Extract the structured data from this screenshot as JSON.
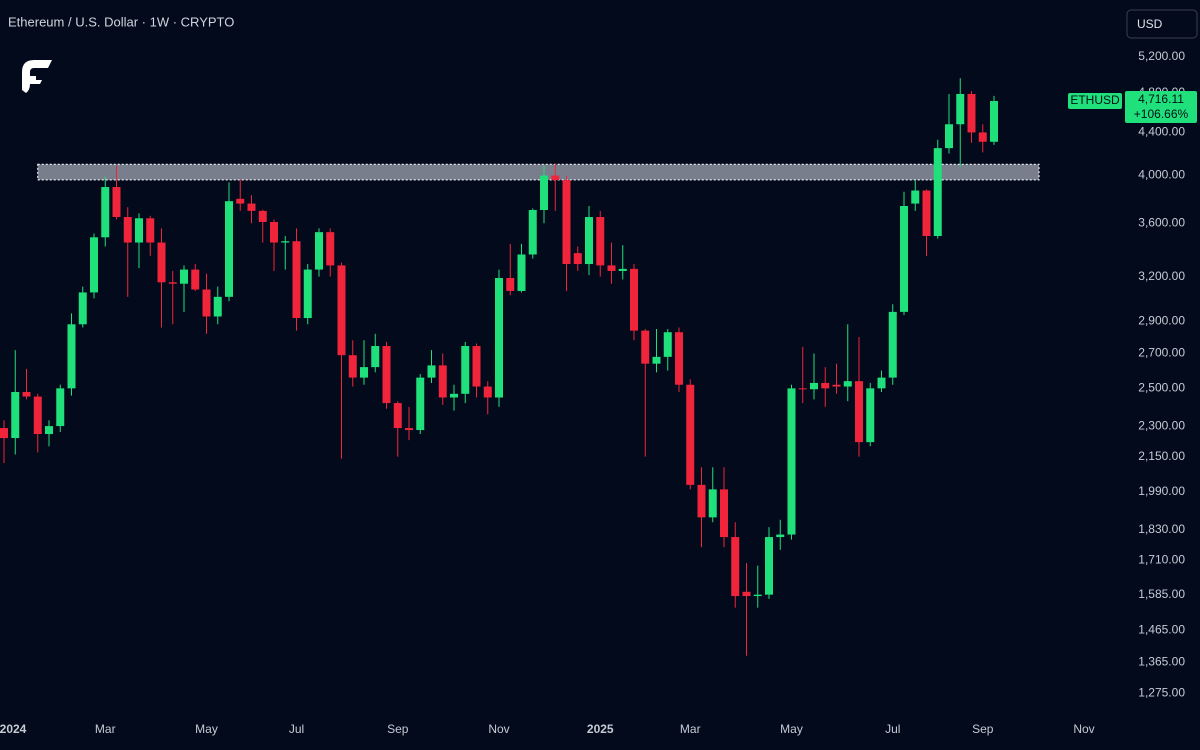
{
  "chart_data": {
    "type": "candlestick",
    "title": "Ethereum / U.S. Dollar · 1W · CRYPTO",
    "currency_button": "USD",
    "symbol": "ETHUSD",
    "last_price_label": "4,716.11",
    "change_label": "+106.66%",
    "log_scale": true,
    "grid": false,
    "up_color": "#1fe07a",
    "down_color": "#f0243a",
    "zone": {
      "ylim": [
        3962,
        4100
      ],
      "from": 3,
      "to": 92
    },
    "categories": [
      "2024",
      null,
      null,
      null,
      null,
      null,
      null,
      null,
      null,
      "Mar",
      null,
      null,
      null,
      null,
      null,
      null,
      null,
      null,
      "May",
      null,
      null,
      null,
      null,
      null,
      null,
      null,
      "Jul",
      null,
      null,
      null,
      null,
      null,
      null,
      null,
      null,
      "Sep",
      null,
      null,
      null,
      null,
      null,
      null,
      null,
      null,
      "Nov",
      null,
      null,
      null,
      null,
      null,
      null,
      null,
      null,
      "2025",
      null,
      null,
      null,
      null,
      null,
      null,
      null,
      "Mar",
      null,
      null,
      null,
      null,
      null,
      null,
      null,
      null,
      "May",
      null,
      null,
      null,
      null,
      null,
      null,
      null,
      null,
      "Jul",
      null,
      null,
      null,
      null,
      null,
      null,
      null,
      "Sep",
      null,
      null,
      null,
      null,
      null,
      null,
      null,
      null,
      "Nov"
    ],
    "open": [
      2290,
      2240,
      2480,
      2455,
      2260,
      2300,
      2500,
      2880,
      3090,
      3490,
      3900,
      3650,
      3450,
      3640,
      3450,
      3160,
      3150,
      3250,
      3110,
      2930,
      3060,
      3800,
      3760,
      3700,
      3610,
      3450,
      3460,
      2920,
      3250,
      3530,
      3280,
      2690,
      2560,
      2620,
      2745,
      2420,
      2290,
      2280,
      2560,
      2630,
      2450,
      2470,
      2745,
      2510,
      2450,
      3190,
      3100,
      3360,
      3707,
      4000,
      3960,
      3370,
      3290,
      3650,
      3280,
      3240,
      3255,
      2840,
      2640,
      2680,
      2830,
      2520,
      2020,
      1880,
      2000,
      1800,
      1595,
      1580,
      1585,
      1800,
      1810,
      2500,
      2495,
      2530,
      2520,
      2510,
      2540,
      2220,
      2500,
      2560,
      2960,
      3760,
      3870,
      3500,
      4250,
      4480,
      4790,
      4400,
      4310,
      null,
      null,
      null,
      null,
      null,
      null,
      null,
      null
    ],
    "high": [
      2330,
      2720,
      2610,
      2470,
      2330,
      2520,
      2950,
      3130,
      3520,
      3990,
      4090,
      3730,
      3680,
      3660,
      3560,
      3240,
      3280,
      3290,
      3220,
      3130,
      3940,
      3970,
      3830,
      3710,
      3630,
      3500,
      3560,
      3290,
      3560,
      3560,
      3300,
      2780,
      2780,
      2820,
      2770,
      2430,
      2400,
      2580,
      2720,
      2700,
      2520,
      2770,
      2760,
      2540,
      3250,
      3440,
      3440,
      3720,
      4090,
      4107,
      4000,
      3420,
      3740,
      3700,
      3450,
      3430,
      3290,
      2850,
      2850,
      2850,
      2860,
      2550,
      2100,
      2100,
      2100,
      1860,
      1700,
      1690,
      1840,
      1870,
      2520,
      2740,
      2700,
      2620,
      2640,
      2880,
      2800,
      2530,
      2600,
      3010,
      3860,
      3960,
      3880,
      4330,
      4790,
      4960,
      4820,
      4480,
      4770,
      null,
      null,
      null,
      null,
      null,
      null,
      null,
      null
    ],
    "low": [
      2120,
      2160,
      2440,
      2170,
      2200,
      2270,
      2460,
      2860,
      3050,
      3420,
      3630,
      3060,
      3260,
      3350,
      2860,
      2880,
      2960,
      3100,
      2820,
      2880,
      3030,
      3700,
      3600,
      3450,
      3240,
      3250,
      2840,
      2880,
      3200,
      3200,
      2140,
      2510,
      2520,
      2590,
      2390,
      2150,
      2230,
      2260,
      2530,
      2410,
      2380,
      2420,
      2450,
      2360,
      2400,
      3070,
      3090,
      3330,
      3600,
      3700,
      3100,
      3240,
      3210,
      3200,
      3150,
      3180,
      2780,
      2150,
      2590,
      2600,
      2480,
      2000,
      1760,
      1860,
      1760,
      1540,
      1385,
      1540,
      1570,
      1750,
      1790,
      2420,
      2440,
      2400,
      2470,
      2430,
      2150,
      2200,
      2480,
      2520,
      2940,
      3700,
      3350,
      3480,
      4200,
      4080,
      4300,
      4210,
      4280,
      null,
      null,
      null,
      null,
      null,
      null,
      null,
      null
    ],
    "close": [
      2240,
      2480,
      2455,
      2260,
      2300,
      2500,
      2880,
      3090,
      3490,
      3900,
      3650,
      3450,
      3640,
      3450,
      3160,
      3150,
      3250,
      3110,
      2930,
      3060,
      3780,
      3760,
      3700,
      3610,
      3450,
      3460,
      2920,
      3250,
      3530,
      3280,
      2690,
      2560,
      2620,
      2745,
      2420,
      2290,
      2280,
      2560,
      2630,
      2450,
      2470,
      2745,
      2510,
      2450,
      3190,
      3100,
      3360,
      3707,
      4000,
      3960,
      3290,
      3290,
      3650,
      3280,
      3240,
      3255,
      2840,
      2640,
      2680,
      2830,
      2520,
      2020,
      1880,
      2000,
      1800,
      1580,
      1580,
      1585,
      1800,
      1810,
      2500,
      2495,
      2530,
      2500,
      2510,
      2540,
      2220,
      2500,
      2560,
      2960,
      3740,
      3870,
      3500,
      4250,
      4480,
      4790,
      4400,
      4310,
      4716.11,
      null,
      null,
      null,
      null,
      null,
      null,
      null,
      null
    ],
    "ylim": [
      1215,
      5895
    ],
    "yticks": [
      {
        "value": 5200,
        "label": "5,200.00"
      },
      {
        "value": 4800,
        "label": "4,800.00"
      },
      {
        "value": 4400,
        "label": "4,400.00"
      },
      {
        "value": 4000,
        "label": "4,000.00"
      },
      {
        "value": 3600,
        "label": "3,600.00"
      },
      {
        "value": 3200,
        "label": "3,200.00"
      },
      {
        "value": 2900,
        "label": "2,900.00"
      },
      {
        "value": 2700,
        "label": "2,700.00"
      },
      {
        "value": 2500,
        "label": "2,500.00"
      },
      {
        "value": 2300,
        "label": "2,300.00"
      },
      {
        "value": 2150,
        "label": "2,150.00"
      },
      {
        "value": 1990,
        "label": "1,990.00"
      },
      {
        "value": 1830,
        "label": "1,830.00"
      },
      {
        "value": 1710,
        "label": "1,710.00"
      },
      {
        "value": 1585,
        "label": "1,585.00"
      },
      {
        "value": 1465,
        "label": "1,465.00"
      },
      {
        "value": 1365,
        "label": "1,365.00"
      },
      {
        "value": 1275,
        "label": "1,275.00"
      }
    ]
  }
}
